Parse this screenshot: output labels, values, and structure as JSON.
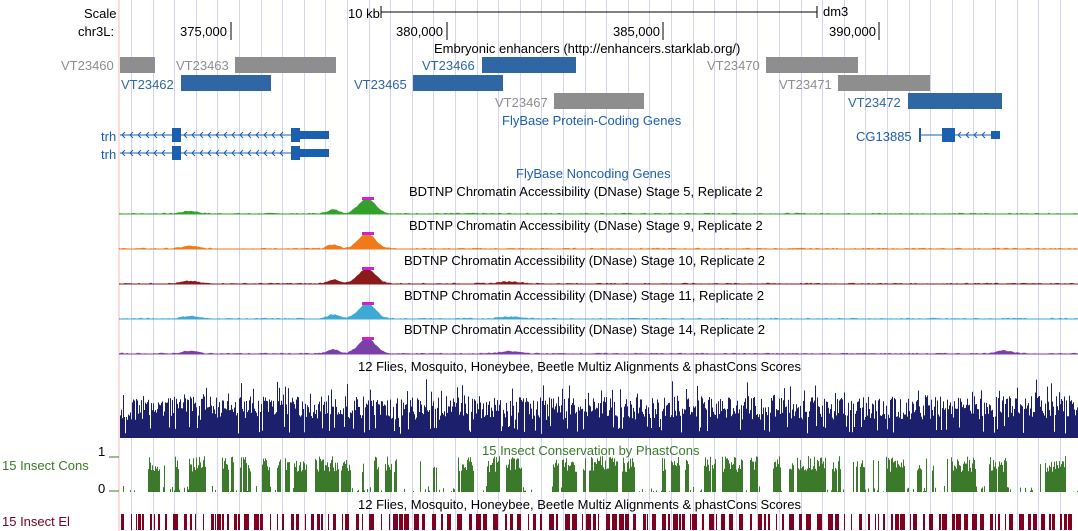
{
  "ruler": {
    "scale_label": "Scale",
    "chrom_label": "chr3L:",
    "scale_bar_label": "10 kb",
    "assembly": "dm3",
    "ticks": [
      "375,000",
      "380,000",
      "385,000",
      "390,000"
    ]
  },
  "tracks": {
    "enhancers": {
      "title": "Embryonic enhancers (http://enhancers.starklab.org/)",
      "items": [
        "VT23460",
        "VT23462",
        "VT23463",
        "VT23465",
        "VT23466",
        "VT23467",
        "VT23470",
        "VT23471",
        "VT23472"
      ]
    },
    "coding_genes": {
      "title": "FlyBase Protein-Coding Genes",
      "items": [
        "trh",
        "trh",
        "CG13885"
      ]
    },
    "noncoding_genes": {
      "title": "FlyBase Noncoding Genes"
    },
    "dnase": [
      {
        "title": "BDTNP Chromatin Accessibility (DNase) Stage 5, Replicate 2",
        "color": "#33a02c"
      },
      {
        "title": "BDTNP Chromatin Accessibility (DNase) Stage 9, Replicate 2",
        "color": "#f07a1a"
      },
      {
        "title": "BDTNP Chromatin Accessibility (DNase) Stage 10, Replicate 2",
        "color": "#8b1a1a"
      },
      {
        "title": "BDTNP Chromatin Accessibility (DNase) Stage 11, Replicate 2",
        "color": "#3fa9d6"
      },
      {
        "title": "BDTNP Chromatin Accessibility (DNase) Stage 14, Replicate 2",
        "color": "#7a3fa8"
      }
    ],
    "multiz": {
      "title": "12 Flies, Mosquito, Honeybee, Beetle Multiz Alignments & phastCons Scores",
      "color": "#1c1f6b"
    },
    "phastcons": {
      "title": "15 Insect Conservation by PhastCons",
      "side_label": "15 Insect Cons",
      "axis_max": "1",
      "axis_min": "0",
      "color": "#3a7a2a"
    },
    "elements": {
      "title": "12 Flies, Mosquito, Honeybee, Beetle Multiz Alignments & phastCons Scores",
      "side_label": "15 Insect El",
      "color": "#800020"
    }
  },
  "colors": {
    "grid": "#d4d4f4",
    "left_guide": "#f4b8b8",
    "gene_blue": "#1a5fb0",
    "enh_blue": "#2e67a3",
    "enh_gray": "#8e8e8e"
  }
}
